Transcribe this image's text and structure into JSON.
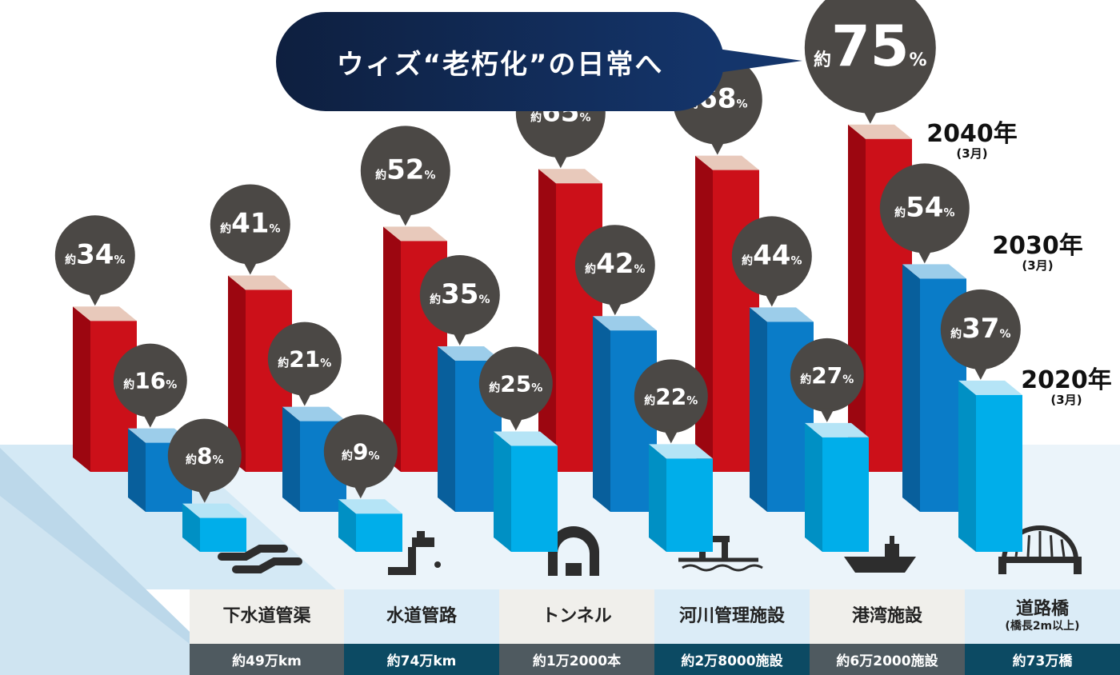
{
  "title": "ウィズ“老朽化”の日常へ",
  "legend": [
    {
      "year": "2040年",
      "month": "(3月)",
      "color": "#cc1019"
    },
    {
      "year": "2030年",
      "month": "(3月)",
      "color": "#0a7cc8"
    },
    {
      "year": "2020年",
      "month": "(3月)",
      "color": "#00aeea"
    }
  ],
  "categories": [
    {
      "name": "下水道管渠",
      "sub": "",
      "stock": "約49万km",
      "icon": "sewer-pipe-icon"
    },
    {
      "name": "水道管路",
      "sub": "",
      "stock": "約74万km",
      "icon": "water-faucet-icon"
    },
    {
      "name": "トンネル",
      "sub": "",
      "stock": "約1万2000本",
      "icon": "tunnel-icon"
    },
    {
      "name": "河川管理施設",
      "sub": "",
      "stock": "約2万8000施設",
      "icon": "river-gate-icon"
    },
    {
      "name": "港湾施設",
      "sub": "",
      "stock": "約6万2000施設",
      "icon": "port-ship-icon"
    },
    {
      "name": "道路橋",
      "sub": "(橋長2m以上)",
      "stock": "約73万橋",
      "icon": "bridge-icon"
    }
  ],
  "chart_data": {
    "type": "bar",
    "title": "ウィズ“老朽化”の日常へ",
    "categories": [
      "下水道管渠",
      "水道管路",
      "トンネル",
      "河川管理施設",
      "港湾施設",
      "道路橋"
    ],
    "series": [
      {
        "name": "2040年(3月)",
        "values": [
          34,
          41,
          52,
          65,
          68,
          75
        ]
      },
      {
        "name": "2030年(3月)",
        "values": [
          16,
          21,
          35,
          42,
          44,
          54
        ]
      },
      {
        "name": "2020年(3月)",
        "values": [
          8,
          9,
          25,
          22,
          27,
          37
        ]
      }
    ],
    "value_prefix": "約",
    "value_unit": "%"
  },
  "colors": {
    "red_front": "#cc1019",
    "red_side": "#9c0610",
    "red_top": "#e8c9bb",
    "mid_front": "#0a7cc8",
    "mid_side": "#085f9c",
    "mid_top": "#9ccdea",
    "light_front": "#00aeea",
    "light_side": "#0090c4",
    "light_top": "#b5e4f6",
    "bubble": "#4b4845",
    "floor": "#d4e9f5",
    "header_a": "#f0efeb",
    "header_b": "#dbecf7",
    "stat_a": "#4f5a60",
    "stat_b": "#0c4a63"
  }
}
